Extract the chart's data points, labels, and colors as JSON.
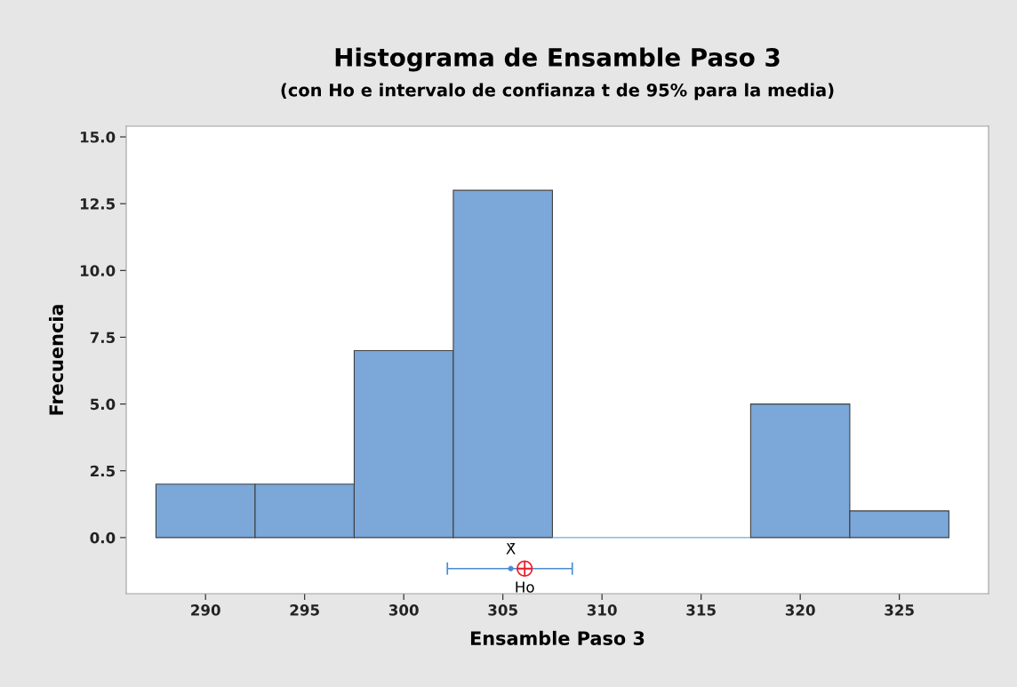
{
  "chart_data": {
    "type": "histogram",
    "title": "Histograma de Ensamble Paso 3",
    "subtitle": "(con Ho e intervalo de confianza t de 95% para la media)",
    "xlabel": "Ensamble Paso 3",
    "ylabel": "Frecuencia",
    "bins": [
      287.5,
      292.5,
      297.5,
      302.5,
      307.5,
      312.5,
      317.5,
      322.5,
      327.5
    ],
    "values": [
      2,
      2,
      7,
      13,
      0,
      0,
      5,
      1
    ],
    "color": "#7ba7d9",
    "series": [
      {
        "type": "scatter",
        "x": [
          305.4
        ],
        "values": [
          -1.16
        ],
        "xerrors": [
          [
            302.2,
            308.5
          ]
        ],
        "color": "#4a8bd0",
        "marker": "circle"
      },
      {
        "type": "scatter",
        "x": [
          306.1
        ],
        "values": [
          -1.16
        ],
        "color": "#e8202a",
        "marker": "cross"
      }
    ],
    "annotations": [
      "X̄",
      "Ho"
    ],
    "xlim": [
      286.0,
      329.5
    ],
    "ylim": [
      -2.1,
      15.4
    ],
    "xticks": [
      290,
      295,
      300,
      305,
      310,
      315,
      320,
      325
    ],
    "yticks": [
      {
        "value": 0,
        "label": "0.0"
      },
      {
        "value": 2.5,
        "label": "2.5"
      },
      {
        "value": 5,
        "label": "5.0"
      },
      {
        "value": 7.5,
        "label": "7.5"
      },
      {
        "value": 10,
        "label": "10.0"
      },
      {
        "value": 12.5,
        "label": "12.5"
      },
      {
        "value": 15,
        "label": "15.0"
      }
    ],
    "grid": false,
    "legend": false
  }
}
